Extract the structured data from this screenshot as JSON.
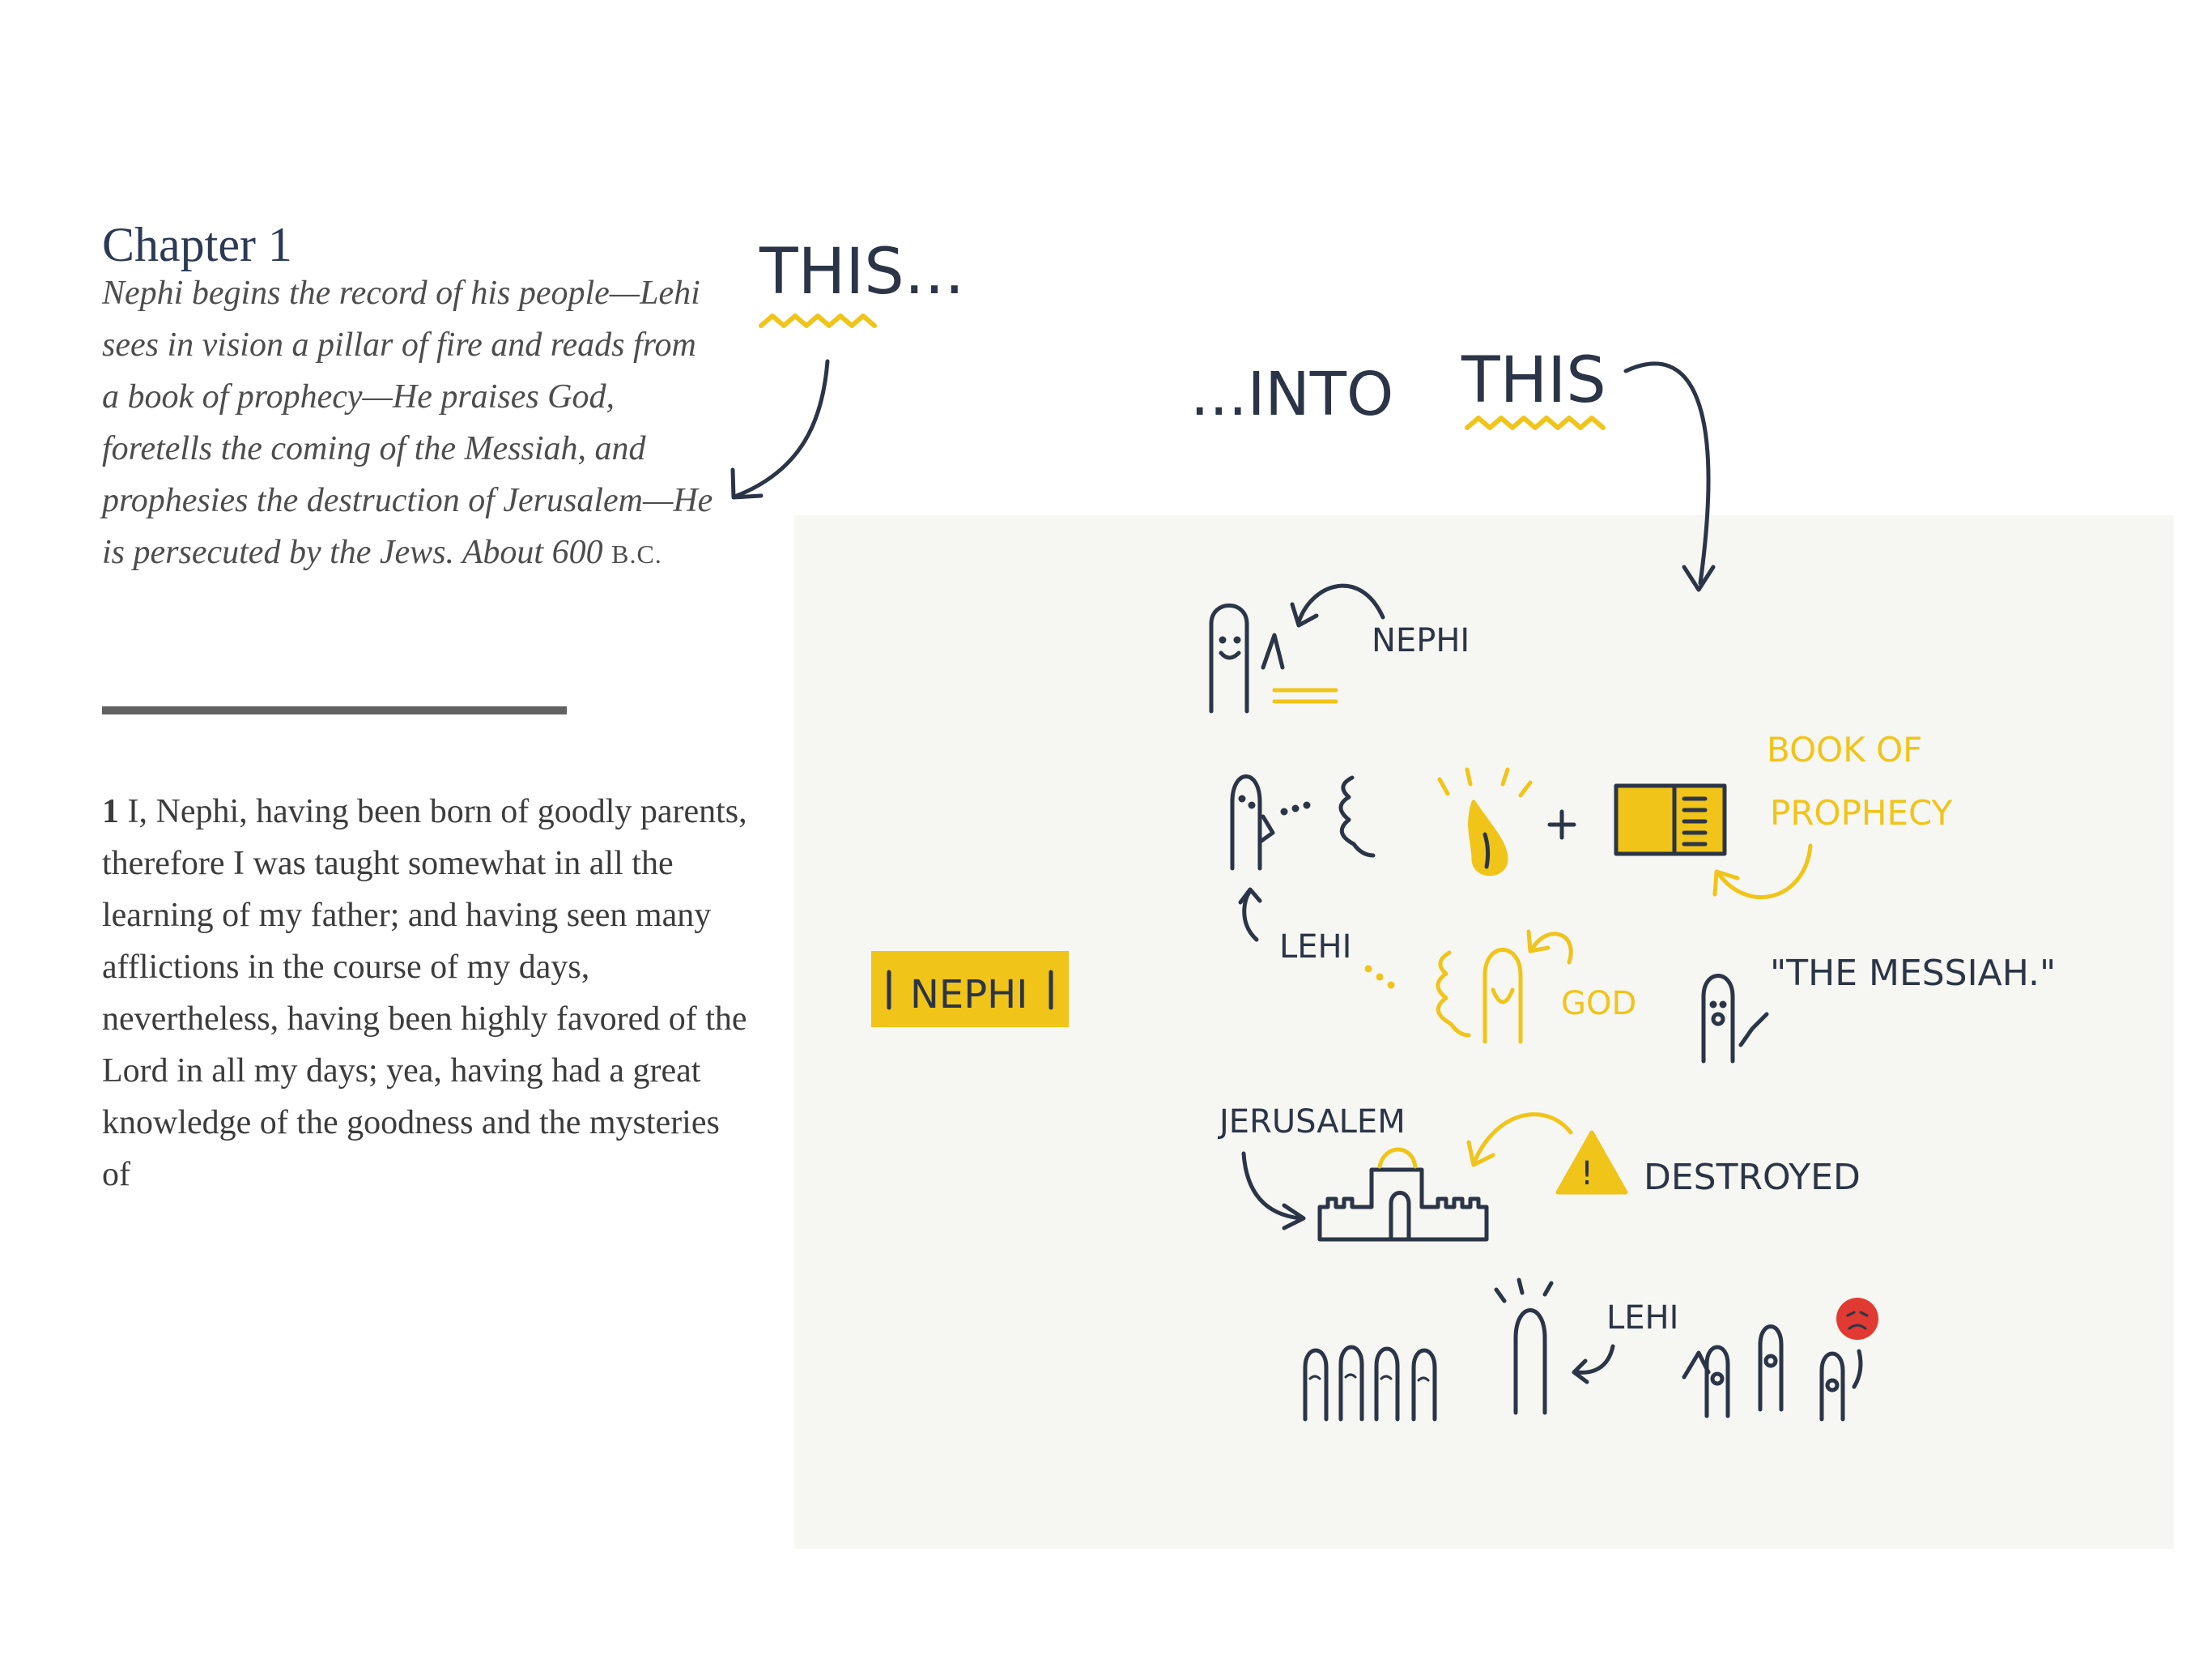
{
  "chapter": {
    "title": "Chapter 1",
    "summary": "Nephi begins the record of his people—Lehi sees in vision a pillar of fire and reads from a book of prophecy—He praises God, foretells the coming of the Messiah, and prophesies the destruction of Jerusalem—He is persecuted by the Jews. About 600",
    "summary_era": "B.C."
  },
  "verse": {
    "number": "1",
    "text": "I, Nephi, having been born of goodly parents, therefore I was taught somewhat in all the learning of my father; and having seen many afflictions in the course of my days, nevertheless, having been highly favored of the Lord in all my days; yea, having had a great knowledge of the goodness and the mysteries of"
  },
  "sketch": {
    "heading_this": "THIS...",
    "heading_into": "...INTO",
    "heading_this2": "THIS",
    "tag_label": "NEPHI",
    "labels": {
      "nephi": "NEPHI",
      "book_of_prophecy_1": "BOOK OF",
      "book_of_prophecy_2": "PROPHECY",
      "lehi": "LEHI",
      "god": "GOD",
      "messiah": "\"THE MESSIAH.\"",
      "jerusalem": "JERUSALEM",
      "destroyed": "DESTROYED",
      "lehi_2": "LEHI",
      "warning_mark": "!"
    }
  },
  "colors": {
    "navy": "#2b3547",
    "yellow": "#f0c419",
    "red": "#e03a33",
    "panel": "#f6f6f2",
    "text": "#3c3c3c",
    "title": "#2d3a55"
  }
}
